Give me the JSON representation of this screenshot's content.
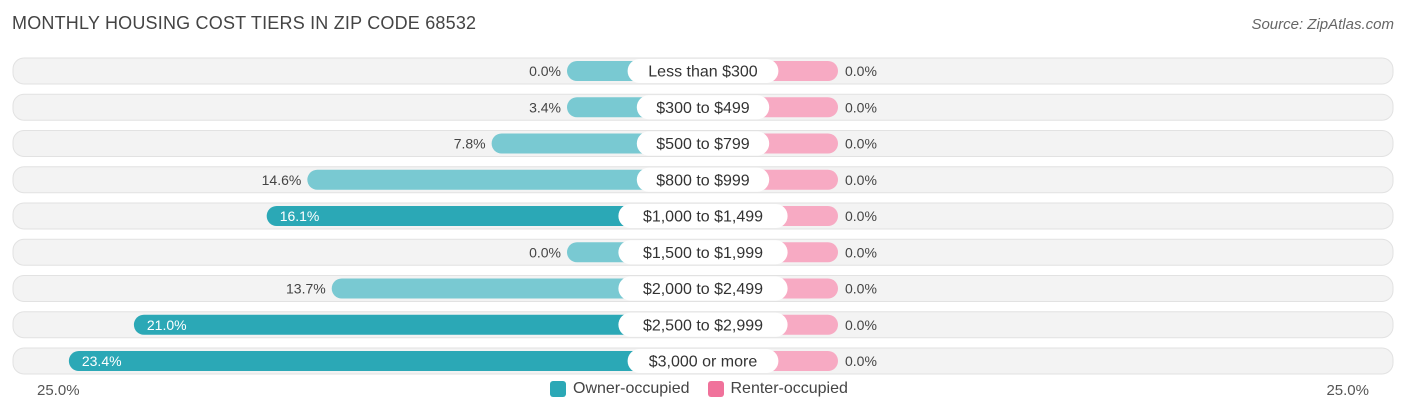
{
  "title": "MONTHLY HOUSING COST TIERS IN ZIP CODE 68532",
  "source": "Source: ZipAtlas.com",
  "axis": {
    "min_label": "25.0%",
    "max_label": "25.0%"
  },
  "legend": {
    "owner_label": "Owner-occupied",
    "renter_label": "Renter-occupied"
  },
  "colors": {
    "owner": "#2ba8b6",
    "owner_light": "#79c9d2",
    "renter": "#f0729b",
    "renter_light": "#f7aac3",
    "row_bg": "#efefef"
  },
  "chart_data": {
    "type": "bar",
    "orientation": "diverging-horizontal",
    "categories": [
      "Less than $300",
      "$300 to $499",
      "$500 to $799",
      "$800 to $999",
      "$1,000 to $1,499",
      "$1,500 to $1,999",
      "$2,000 to $2,499",
      "$2,500 to $2,999",
      "$3,000 or more"
    ],
    "series": [
      {
        "name": "Owner-occupied",
        "values": [
          0.0,
          3.4,
          7.8,
          14.6,
          16.1,
          0.0,
          13.7,
          21.0,
          23.4
        ],
        "labels": [
          "0.0%",
          "3.4%",
          "7.8%",
          "14.6%",
          "16.1%",
          "0.0%",
          "13.7%",
          "21.0%",
          "23.4%"
        ]
      },
      {
        "name": "Renter-occupied",
        "values": [
          0.0,
          0.0,
          0.0,
          0.0,
          0.0,
          0.0,
          0.0,
          0.0,
          0.0
        ],
        "labels": [
          "0.0%",
          "0.0%",
          "0.0%",
          "0.0%",
          "0.0%",
          "0.0%",
          "0.0%",
          "0.0%",
          "0.0%"
        ]
      }
    ],
    "xlim": [
      -25,
      25
    ],
    "unit": "%"
  }
}
